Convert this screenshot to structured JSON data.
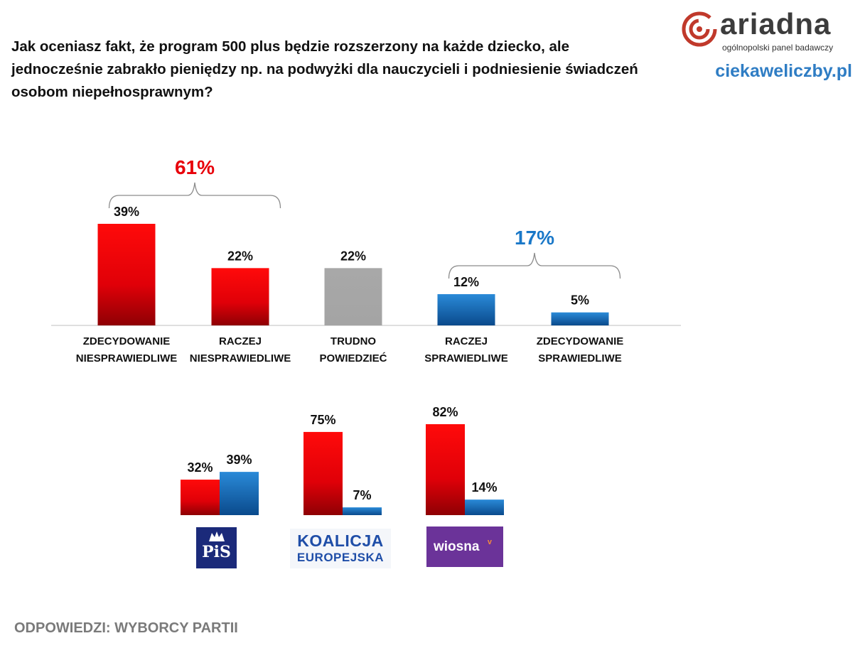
{
  "question": "Jak oceniasz fakt, że program 500 plus będzie rozszerzony na każde dziecko, ale jednocześnie zabrakło pieniędzy np. na podwyżki dla nauczycieli i podniesienie świadczeń osobom niepełnosprawnym?",
  "brand": {
    "logo_word": "ariadna",
    "logo_tagline": "ogólnopolski panel badawczy",
    "site": "ciekaweliczby.pl"
  },
  "footer": "ODPOWIEDZI: WYBORCY PARTII",
  "colors": {
    "red": "#e8000a",
    "red_dark": "#9a0004",
    "blue": "#1a78c8",
    "blue_dark": "#0b4f94",
    "gray": "#a6a6a6"
  },
  "chart_data": [
    {
      "type": "bar",
      "categories": [
        [
          "ZDECYDOWANIE",
          "NIESPRAWIEDLIWE"
        ],
        [
          "RACZEJ",
          "NIESPRAWIEDLIWE"
        ],
        [
          "TRUDNO",
          "POWIEDZIEĆ"
        ],
        [
          "RACZEJ",
          "SPRAWIEDLIWE"
        ],
        [
          "ZDECYDOWANIE",
          "SPRAWIEDLIWE"
        ]
      ],
      "values": [
        39,
        22,
        22,
        12,
        5
      ],
      "value_labels": [
        "39%",
        "22%",
        "22%",
        "12%",
        "5%"
      ],
      "bar_colors": [
        "red",
        "red",
        "gray",
        "blue",
        "blue"
      ],
      "ylim": [
        0,
        45
      ],
      "groups": [
        {
          "label": "61%",
          "color": "red",
          "from": 0,
          "to": 1
        },
        {
          "label": "17%",
          "color": "blue",
          "from": 3,
          "to": 4
        }
      ]
    },
    {
      "type": "bar",
      "categories": [
        "PiS",
        "KOALICJA EUROPEJSKA",
        "Wiosna"
      ],
      "series": [
        {
          "color": "red",
          "values": [
            32,
            75,
            82
          ],
          "value_labels": [
            "32%",
            "75%",
            "82%"
          ]
        },
        {
          "color": "blue",
          "values": [
            39,
            7,
            14
          ],
          "value_labels": [
            "39%",
            "7%",
            "14%"
          ]
        }
      ],
      "ylim": [
        0,
        90
      ]
    }
  ],
  "party_logos": {
    "pis": "PiS",
    "ke_line1": "KOALICJA",
    "ke_line2": "EUROPEJSKA",
    "wiosna": "wiosna"
  }
}
